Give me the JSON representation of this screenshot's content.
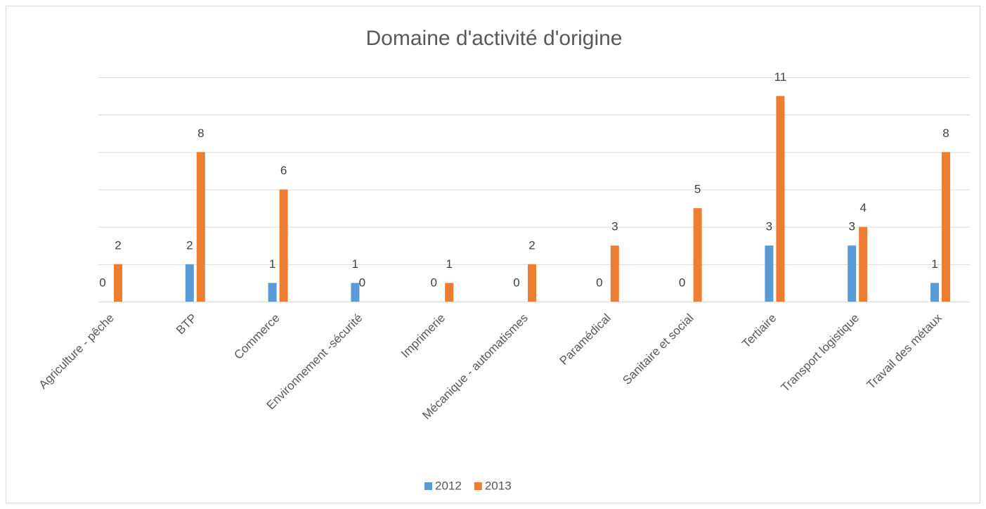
{
  "chart_data": {
    "type": "bar",
    "title": "Domaine d'activité d'origine",
    "categories": [
      "Agriculture - pêche",
      "BTP",
      "Commerce",
      "Environnement -sécurité",
      "Imprimerie",
      "Mécanique - automatismes",
      "Paramédical",
      "Sanitaire et social",
      "Tertiaire",
      "Transport logistique",
      "Travail des métaux"
    ],
    "series": [
      {
        "name": "2012",
        "color": "#5b9bd5",
        "values": [
          0,
          2,
          1,
          1,
          0,
          0,
          0,
          0,
          3,
          3,
          1
        ]
      },
      {
        "name": "2013",
        "color": "#ed7d31",
        "values": [
          2,
          8,
          6,
          0,
          1,
          2,
          3,
          5,
          11,
          4,
          8
        ]
      }
    ],
    "ylim": [
      0,
      12
    ],
    "yticks": [
      0,
      2,
      4,
      6,
      8,
      10,
      12
    ],
    "grid": true,
    "legend": "bottom"
  }
}
